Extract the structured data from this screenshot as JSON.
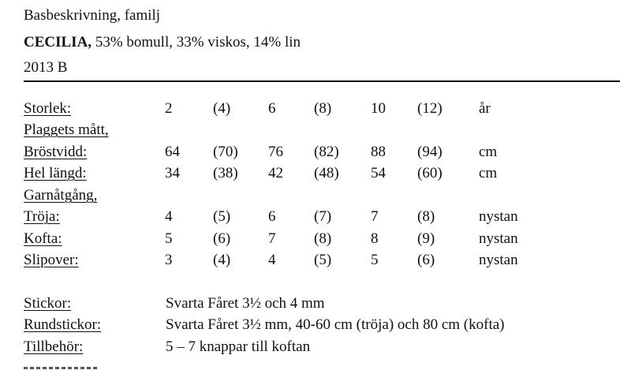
{
  "header": {
    "line1": "Basbeskrivning, familj",
    "name": "CECILIA,",
    "composition": " 53% bomull, 33% viskos, 14% lin",
    "code": "2013 B"
  },
  "sizes": {
    "label": "Storlek:",
    "values": [
      "2",
      "(4)",
      "6",
      "(8)",
      "10",
      "(12)"
    ],
    "unit": "år"
  },
  "measurements": {
    "heading": "Plaggets mått,",
    "rows": [
      {
        "label": "Bröstvidd:",
        "values": [
          "64",
          "(70)",
          "76",
          "(82)",
          "88",
          "(94)"
        ],
        "unit": "cm"
      },
      {
        "label": "Hel längd:",
        "values": [
          "34",
          "(38)",
          "42",
          "(48)",
          "54",
          "(60)"
        ],
        "unit": "cm"
      }
    ]
  },
  "yarn": {
    "heading": "Garnåtgång,",
    "rows": [
      {
        "label": "Tröja:",
        "values": [
          "4",
          "(5)",
          "6",
          "(7)",
          "7",
          "(8)"
        ],
        "unit": "nystan"
      },
      {
        "label": "Kofta:",
        "values": [
          "5",
          "(6)",
          "7",
          "(8)",
          "8",
          "(9)"
        ],
        "unit": "nystan"
      },
      {
        "label": "Slipover:",
        "values": [
          "3",
          "(4)",
          "4",
          "(5)",
          "5",
          "(6)"
        ],
        "unit": "nystan"
      }
    ]
  },
  "materials": [
    {
      "label": "Stickor:",
      "value": "Svarta Fåret 3½ och 4 mm"
    },
    {
      "label": "Rundstickor:",
      "value": "Svarta Fåret 3½ mm, 40-60 cm (tröja) och 80 cm (kofta)"
    },
    {
      "label": "Tillbehör:",
      "value": "5 – 7 knappar till koftan"
    }
  ]
}
